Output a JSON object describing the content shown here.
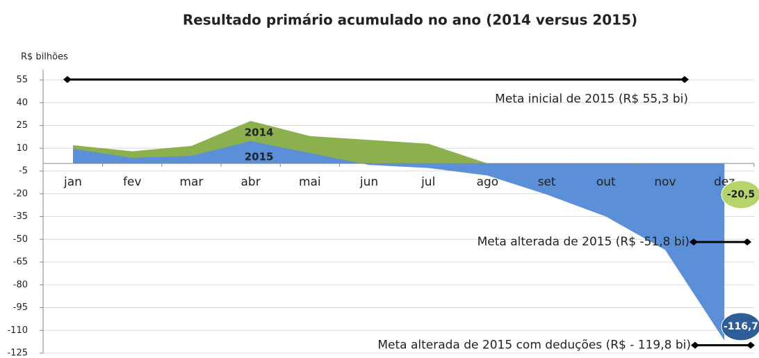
{
  "chart_data": {
    "type": "area",
    "title": "Resultado primário acumulado no ano (2014 versus 2015)",
    "y_label": "R$ bilhões",
    "categories": [
      "jan",
      "fev",
      "mar",
      "abr",
      "mai",
      "jun",
      "jul",
      "ago",
      "set",
      "out",
      "nov",
      "dez"
    ],
    "series": [
      {
        "name": "2014",
        "color": "#8db04f",
        "values": [
          12,
          8,
          11.5,
          28,
          18,
          15.5,
          13,
          0,
          -20,
          -15,
          -21,
          -20.5
        ],
        "value_labels": [
          null,
          null,
          null,
          null,
          null,
          null,
          null,
          null,
          null,
          null,
          null,
          "-20,5"
        ]
      },
      {
        "name": "2015",
        "color": "#5b8fd8",
        "values": [
          9.6,
          3.7,
          5,
          14.7,
          6.9,
          -1,
          -3,
          -8,
          -20.5,
          -35,
          -57,
          -116.7
        ],
        "value_labels": [
          null,
          null,
          null,
          null,
          null,
          null,
          null,
          null,
          null,
          null,
          null,
          "-116,7"
        ]
      }
    ],
    "reference_lines": [
      {
        "label": "Meta inicial de 2015 (R$ 55,3 bi)",
        "value": 55.3
      },
      {
        "label": "Meta alterada de 2015 (R$ -51,8 bi)",
        "value": -51.8
      },
      {
        "label": "Meta alterada de 2015 com deduções (R$ - 119,8 bi)",
        "value": -119.8
      }
    ],
    "ylim": [
      -125,
      55
    ],
    "yticks": [
      -125,
      -110,
      -95,
      -80,
      -65,
      -50,
      -35,
      -20,
      -5,
      10,
      25,
      40,
      55
    ],
    "grid": true
  }
}
